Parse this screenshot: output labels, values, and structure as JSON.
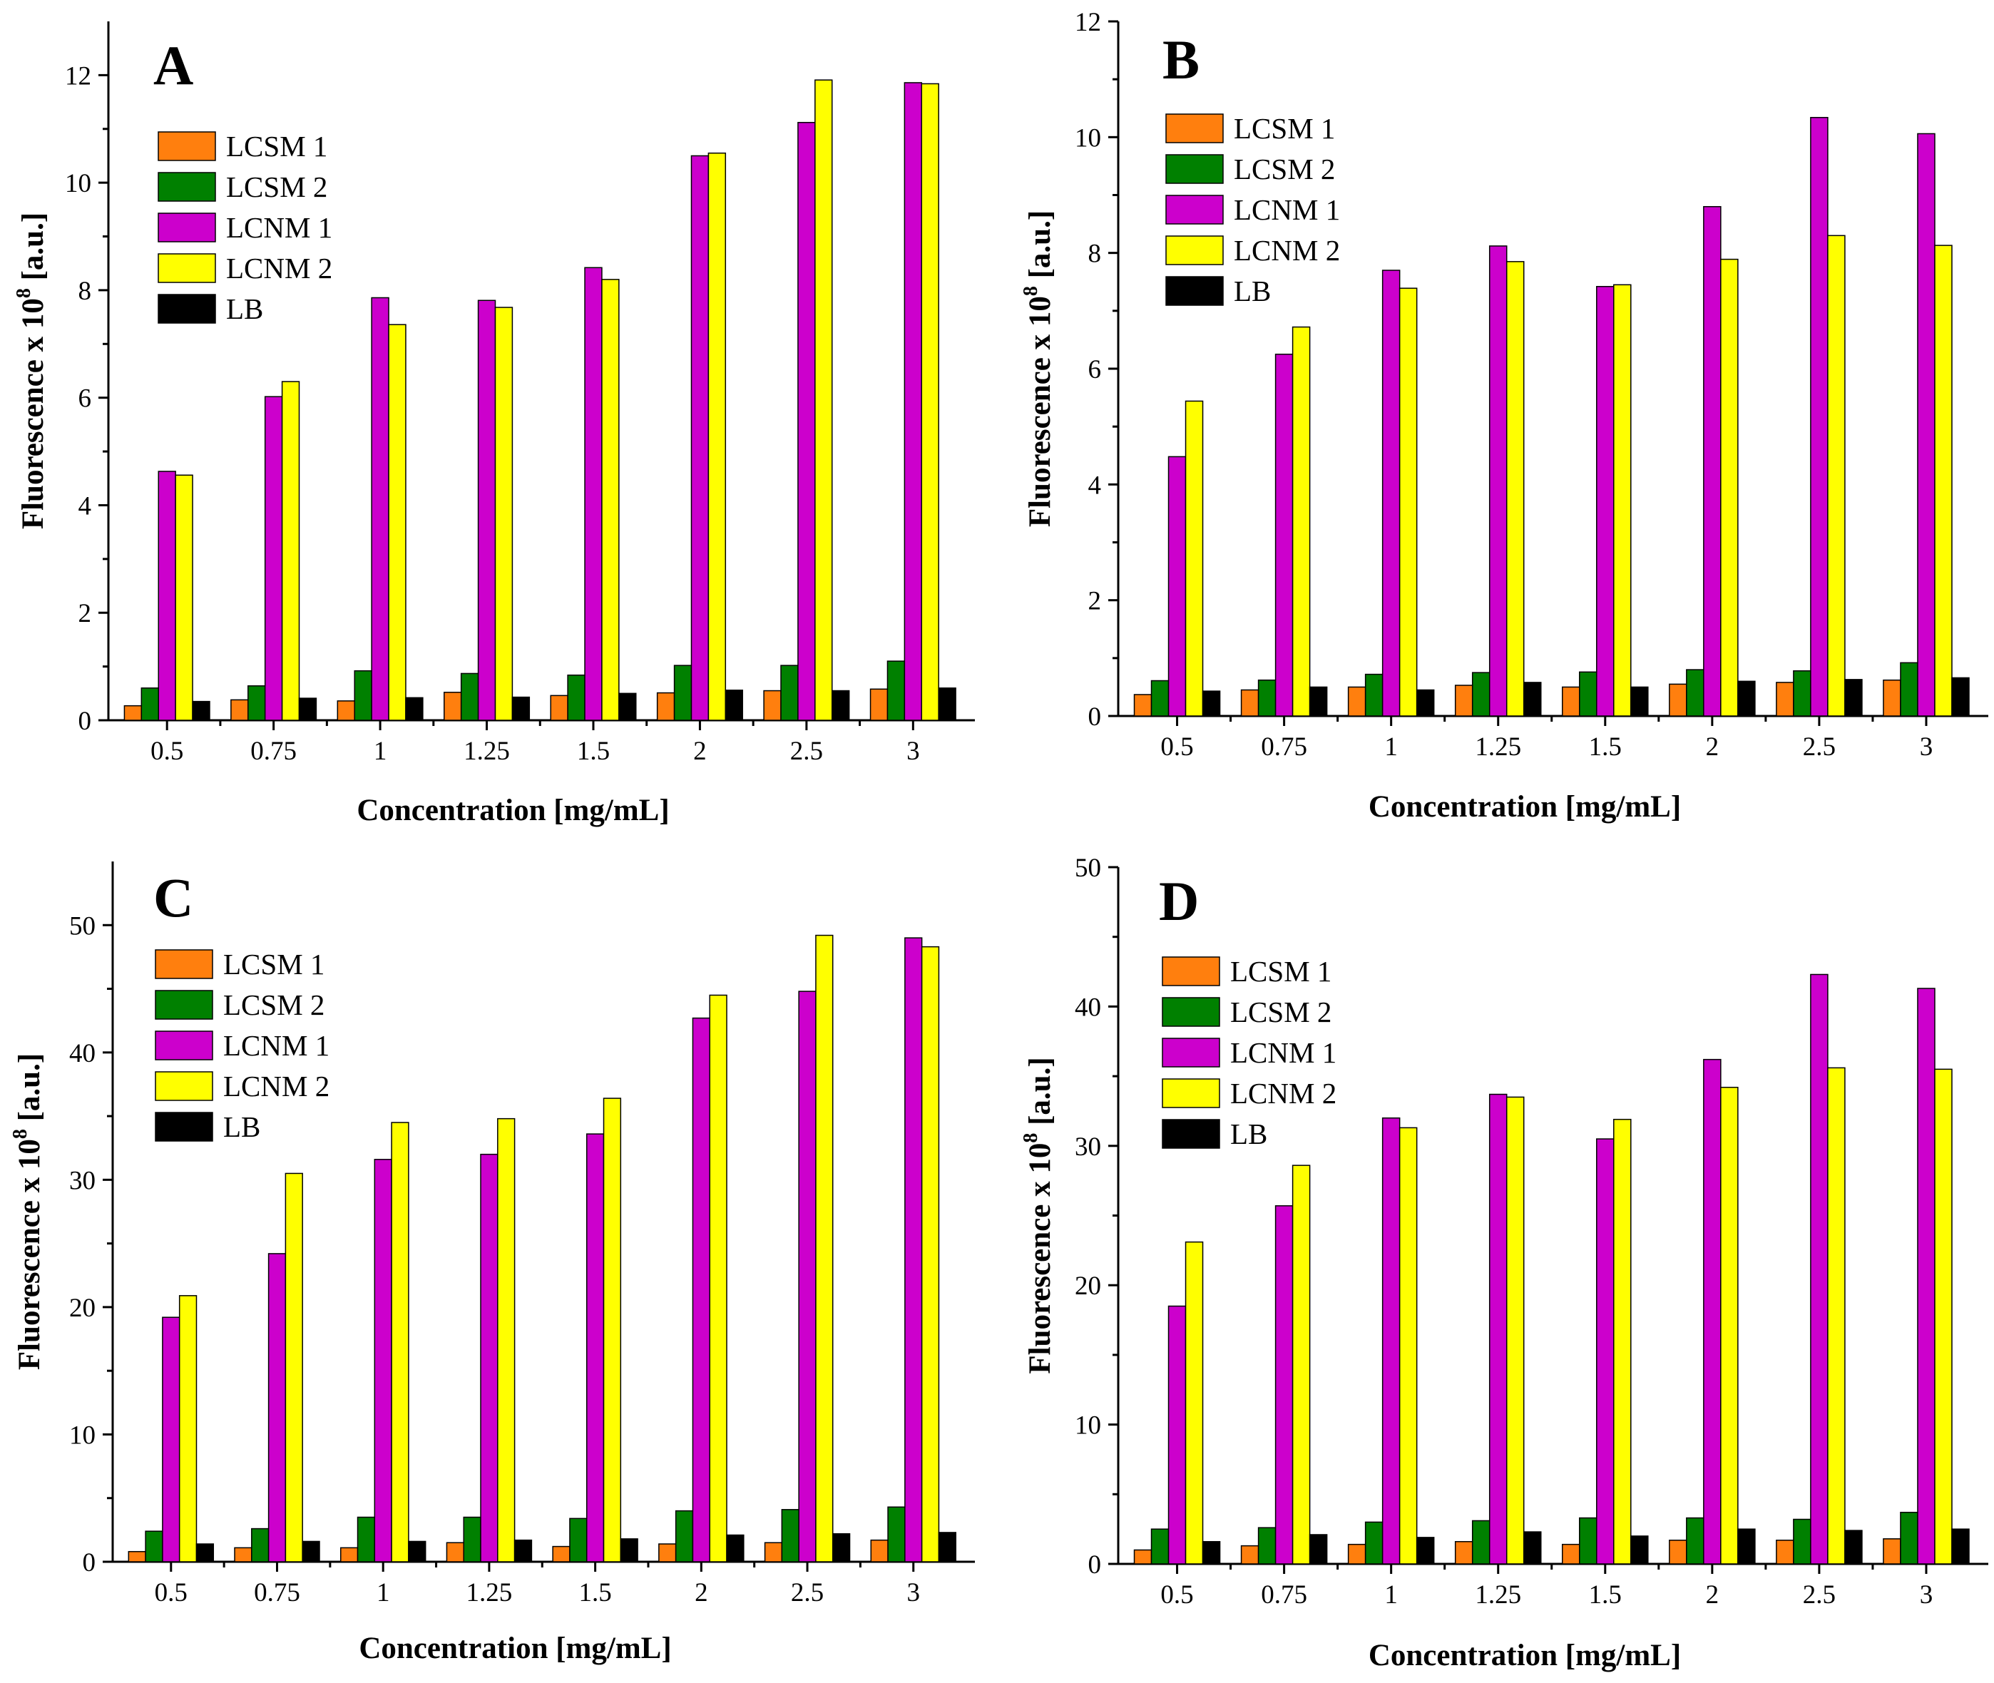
{
  "colors": {
    "LCSM 1": "#ff7f0e",
    "LCSM 2": "#008000",
    "LCNM 1": "#cc00cc",
    "LCNM 2": "#ffff00",
    "LB": "#000000"
  },
  "chart_data": [
    {
      "type": "bar",
      "panel": "A",
      "title": "",
      "xlabel": "Concentration [mg/mL]",
      "ylabel": "Fluorescence x 10",
      "ylabel_sup": "8",
      "ylabel_unit": " [a.u.]",
      "ylim": [
        0,
        13
      ],
      "yticks": [
        0,
        2,
        4,
        6,
        8,
        10,
        12
      ],
      "legend_position": "upper-left",
      "categories": [
        "0.5",
        "0.75",
        "1",
        "1.25",
        "1.5",
        "2",
        "2.5",
        "3"
      ],
      "series": [
        {
          "name": "LCSM 1",
          "values": [
            0.27,
            0.38,
            0.36,
            0.52,
            0.46,
            0.51,
            0.55,
            0.58
          ]
        },
        {
          "name": "LCSM 2",
          "values": [
            0.6,
            0.64,
            0.92,
            0.87,
            0.84,
            1.02,
            1.02,
            1.1
          ]
        },
        {
          "name": "LCNM 1",
          "values": [
            4.63,
            6.02,
            7.86,
            7.81,
            8.42,
            10.5,
            11.12,
            11.86
          ]
        },
        {
          "name": "LCNM 2",
          "values": [
            4.56,
            6.3,
            7.36,
            7.68,
            8.2,
            10.55,
            11.91,
            11.84
          ]
        },
        {
          "name": "LB",
          "values": [
            0.35,
            0.41,
            0.42,
            0.43,
            0.5,
            0.56,
            0.55,
            0.6
          ]
        }
      ]
    },
    {
      "type": "bar",
      "panel": "B",
      "title": "",
      "xlabel": "Concentration [mg/mL]",
      "ylabel": "Fluorescence x 10",
      "ylabel_sup": "8",
      "ylabel_unit": " [a.u.]",
      "ylim": [
        0,
        12
      ],
      "yticks": [
        0,
        2,
        4,
        6,
        8,
        10,
        12
      ],
      "legend_position": "upper-left",
      "categories": [
        "0.5",
        "0.75",
        "1",
        "1.25",
        "1.5",
        "2",
        "2.5",
        "3"
      ],
      "series": [
        {
          "name": "LCSM 1",
          "values": [
            0.37,
            0.45,
            0.5,
            0.53,
            0.5,
            0.55,
            0.58,
            0.62
          ]
        },
        {
          "name": "LCSM 2",
          "values": [
            0.61,
            0.62,
            0.72,
            0.75,
            0.76,
            0.8,
            0.78,
            0.92
          ]
        },
        {
          "name": "LCNM 1",
          "values": [
            4.48,
            6.25,
            7.7,
            8.12,
            7.42,
            8.8,
            10.34,
            10.06
          ]
        },
        {
          "name": "LCNM 2",
          "values": [
            5.44,
            6.72,
            7.39,
            7.85,
            7.45,
            7.89,
            8.3,
            8.13
          ]
        },
        {
          "name": "LB",
          "values": [
            0.43,
            0.5,
            0.45,
            0.58,
            0.5,
            0.6,
            0.63,
            0.66
          ]
        }
      ]
    },
    {
      "type": "bar",
      "panel": "C",
      "title": "",
      "xlabel": "Concentration [mg/mL]",
      "ylabel": "Fluorescence x 10",
      "ylabel_sup": "8",
      "ylabel_unit": " [a.u.]",
      "ylim": [
        0,
        55
      ],
      "yticks": [
        0,
        10,
        20,
        30,
        40,
        50
      ],
      "legend_position": "upper-left",
      "categories": [
        "0.5",
        "0.75",
        "1",
        "1.25",
        "1.5",
        "2",
        "2.5",
        "3"
      ],
      "series": [
        {
          "name": "LCSM 1",
          "values": [
            0.8,
            1.1,
            1.1,
            1.5,
            1.2,
            1.4,
            1.5,
            1.7
          ]
        },
        {
          "name": "LCSM 2",
          "values": [
            2.4,
            2.6,
            3.5,
            3.5,
            3.4,
            4.0,
            4.1,
            4.3
          ]
        },
        {
          "name": "LCNM 1",
          "values": [
            19.2,
            24.2,
            31.6,
            32.0,
            33.6,
            42.7,
            44.8,
            49.0
          ]
        },
        {
          "name": "LCNM 2",
          "values": [
            20.9,
            30.5,
            34.5,
            34.8,
            36.4,
            44.5,
            49.2,
            48.3
          ]
        },
        {
          "name": "LB",
          "values": [
            1.4,
            1.6,
            1.6,
            1.7,
            1.8,
            2.1,
            2.2,
            2.3
          ]
        }
      ]
    },
    {
      "type": "bar",
      "panel": "D",
      "title": "",
      "xlabel": "Concentration [mg/mL]",
      "ylabel": "Fluorescence x 10",
      "ylabel_sup": "8",
      "ylabel_unit": " [a.u.]",
      "ylim": [
        0,
        50
      ],
      "yticks": [
        0,
        10,
        20,
        30,
        40,
        50
      ],
      "legend_position": "upper-left",
      "categories": [
        "0.5",
        "0.75",
        "1",
        "1.25",
        "1.5",
        "2",
        "2.5",
        "3"
      ],
      "series": [
        {
          "name": "LCSM 1",
          "values": [
            1.0,
            1.3,
            1.4,
            1.6,
            1.4,
            1.7,
            1.7,
            1.8
          ]
        },
        {
          "name": "LCSM 2",
          "values": [
            2.5,
            2.6,
            3.0,
            3.1,
            3.3,
            3.3,
            3.2,
            3.7
          ]
        },
        {
          "name": "LCNM 1",
          "values": [
            18.5,
            25.7,
            32.0,
            33.7,
            30.5,
            36.2,
            42.3,
            41.3
          ]
        },
        {
          "name": "LCNM 2",
          "values": [
            23.1,
            28.6,
            31.3,
            33.5,
            31.9,
            34.2,
            35.6,
            35.5
          ]
        },
        {
          "name": "LB",
          "values": [
            1.6,
            2.1,
            1.9,
            2.3,
            2.0,
            2.5,
            2.4,
            2.5
          ]
        }
      ]
    }
  ]
}
